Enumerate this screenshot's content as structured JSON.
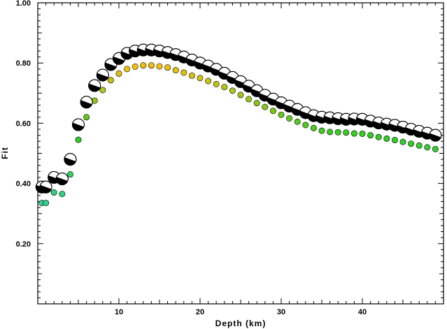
{
  "chart_data": {
    "type": "scatter",
    "title": "",
    "xlabel": "Depth (km)",
    "ylabel": "Fit",
    "xlim": [
      0,
      50
    ],
    "ylim": [
      0.0,
      1.0
    ],
    "xticks": [
      10,
      20,
      30,
      40
    ],
    "xtick_labels": [
      "10",
      "20",
      "30",
      "40"
    ],
    "yticks": [
      0.2,
      0.4,
      0.6,
      0.8,
      1.0
    ],
    "ytick_labels": [
      "0.20",
      "0.40",
      "0.60",
      "0.80",
      "1.00"
    ],
    "grid": false,
    "mechanism_symbols": {
      "description_color": "#000000",
      "depths": [
        0.5,
        1,
        2,
        3,
        4,
        5,
        6,
        7,
        8,
        9,
        10,
        11,
        12,
        13,
        14,
        15,
        16,
        17,
        18,
        19,
        20,
        21,
        22,
        23,
        24,
        25,
        26,
        27,
        28,
        29,
        30,
        31,
        32,
        33,
        34,
        35,
        36,
        37,
        38,
        39,
        40,
        41,
        42,
        43,
        44,
        45,
        46,
        47,
        48,
        49
      ],
      "fits": [
        0.388,
        0.388,
        0.42,
        0.415,
        0.48,
        0.595,
        0.67,
        0.725,
        0.76,
        0.795,
        0.815,
        0.832,
        0.84,
        0.843,
        0.843,
        0.84,
        0.835,
        0.828,
        0.82,
        0.81,
        0.8,
        0.79,
        0.779,
        0.766,
        0.752,
        0.738,
        0.723,
        0.708,
        0.693,
        0.68,
        0.668,
        0.657,
        0.646,
        0.635,
        0.625,
        0.62,
        0.618,
        0.615,
        0.613,
        0.614,
        0.613,
        0.607,
        0.601,
        0.597,
        0.593,
        0.587,
        0.58,
        0.573,
        0.567,
        0.56
      ]
    },
    "series": [
      {
        "x": [
          0.5,
          1,
          2,
          3,
          4,
          5,
          6,
          7,
          8,
          9,
          10,
          11,
          12,
          13,
          14,
          15,
          16,
          17,
          18,
          19,
          20,
          21,
          22,
          23,
          24,
          25,
          26,
          27,
          28,
          29,
          30,
          31,
          32,
          33,
          34,
          35,
          36,
          37,
          38,
          39,
          40,
          41,
          42,
          43,
          44,
          45,
          46,
          47,
          48,
          49
        ],
        "values": [
          0.335,
          0.335,
          0.37,
          0.365,
          0.43,
          0.545,
          0.62,
          0.675,
          0.71,
          0.743,
          0.765,
          0.78,
          0.788,
          0.792,
          0.792,
          0.789,
          0.785,
          0.776,
          0.768,
          0.758,
          0.75,
          0.74,
          0.73,
          0.72,
          0.708,
          0.694,
          0.68,
          0.667,
          0.654,
          0.641,
          0.628,
          0.616,
          0.605,
          0.594,
          0.584,
          0.575,
          0.571,
          0.57,
          0.569,
          0.566,
          0.565,
          0.56,
          0.554,
          0.549,
          0.544,
          0.538,
          0.532,
          0.526,
          0.52,
          0.514
        ]
      }
    ]
  }
}
